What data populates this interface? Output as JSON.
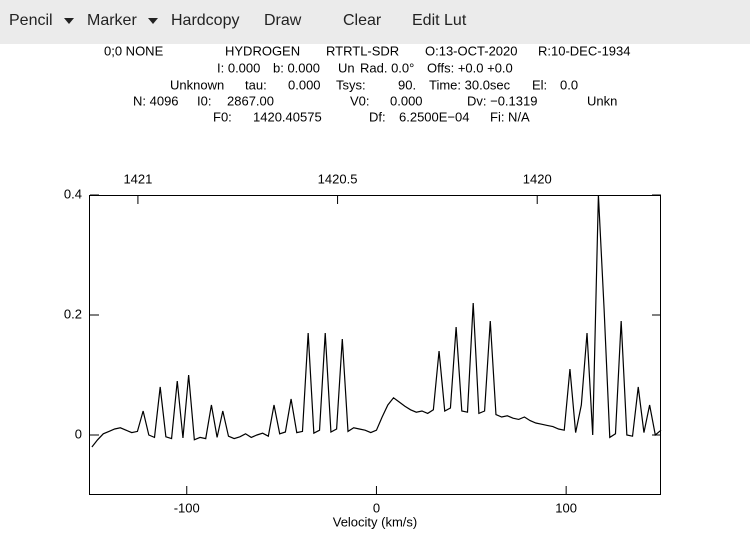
{
  "menu": {
    "items": [
      "Pencil",
      "Marker",
      "Hardcopy",
      "Draw",
      "Clear",
      "Edit Lut"
    ]
  },
  "header": {
    "lines": [
      [
        "0;0 NONE",
        "HYDROGEN",
        "RTRTL-SDR",
        "O:13-OCT-2020",
        "R:10-DEC-1934"
      ],
      [
        "I: 0.000",
        "b: 0.000",
        "Un",
        "Rad. 0.0°",
        "Offs: +0.0 +0.0"
      ],
      [
        "Unknown",
        "tau:",
        "0.000",
        "Tsys:",
        "90.",
        "Time: 30.0sec",
        "El:",
        "0.0"
      ],
      [
        "N: 4096",
        "I0:",
        "2867.00",
        "V0:",
        "0.000",
        "Dv: −0.1319",
        "Unkn"
      ],
      [
        "F0:",
        "1420.40575",
        "Df:",
        "6.2500E−04",
        "Fi: N/A"
      ]
    ]
  },
  "chart_data": {
    "type": "line",
    "xlabel": "Velocity (km/s)",
    "color": "#000000",
    "x": [
      -150,
      -147,
      -144,
      -141,
      -138,
      -135,
      -132,
      -129,
      -126,
      -123,
      -120,
      -117,
      -114,
      -111,
      -108,
      -105,
      -102,
      -99,
      -96,
      -93,
      -90,
      -87,
      -84,
      -81,
      -78,
      -75,
      -72,
      -69,
      -66,
      -63,
      -60,
      -57,
      -54,
      -51,
      -48,
      -45,
      -42,
      -39,
      -36,
      -33,
      -30,
      -27,
      -24,
      -21,
      -18,
      -15,
      -12,
      -9,
      -6,
      -3,
      0,
      3,
      6,
      9,
      12,
      15,
      18,
      21,
      24,
      27,
      30,
      33,
      36,
      39,
      42,
      45,
      48,
      51,
      54,
      57,
      60,
      63,
      66,
      69,
      72,
      75,
      78,
      81,
      84,
      87,
      90,
      93,
      96,
      99,
      102,
      105,
      108,
      111,
      114,
      117,
      120,
      123,
      126,
      129,
      132,
      135,
      138,
      141,
      144,
      147,
      150
    ],
    "values": [
      -0.02,
      -0.008,
      0.002,
      0.006,
      0.01,
      0.012,
      0.008,
      0.004,
      0.006,
      0.04,
      0.0,
      -0.004,
      0.08,
      -0.003,
      -0.006,
      0.09,
      -0.005,
      0.1,
      -0.008,
      -0.004,
      -0.006,
      0.05,
      -0.004,
      0.04,
      -0.002,
      -0.006,
      -0.003,
      0.002,
      -0.004,
      0.0,
      0.003,
      -0.002,
      0.05,
      0.002,
      0.005,
      0.06,
      0.004,
      0.006,
      0.17,
      0.003,
      0.008,
      0.17,
      0.005,
      0.01,
      0.16,
      0.006,
      0.012,
      0.01,
      0.008,
      0.004,
      0.008,
      0.03,
      0.05,
      0.062,
      0.055,
      0.048,
      0.042,
      0.038,
      0.04,
      0.036,
      0.042,
      0.14,
      0.04,
      0.045,
      0.18,
      0.04,
      0.038,
      0.22,
      0.036,
      0.04,
      0.19,
      0.034,
      0.03,
      0.032,
      0.028,
      0.026,
      0.03,
      0.024,
      0.02,
      0.018,
      0.016,
      0.014,
      0.01,
      0.008,
      0.11,
      0.004,
      0.05,
      0.17,
      0.0,
      0.4,
      0.21,
      -0.004,
      0.002,
      0.19,
      0.0,
      -0.002,
      0.08,
      0.004,
      0.05,
      0.0,
      0.008
    ],
    "xlim": [
      -151,
      150
    ],
    "ylim": [
      -0.1,
      0.4
    ],
    "xticks": [
      -100,
      0,
      100
    ],
    "yticks": [
      0,
      0.2,
      0.4
    ],
    "x2lim": [
      1421.12,
      1419.69
    ],
    "x2ticks": [
      1421,
      1420.5,
      1420
    ]
  }
}
